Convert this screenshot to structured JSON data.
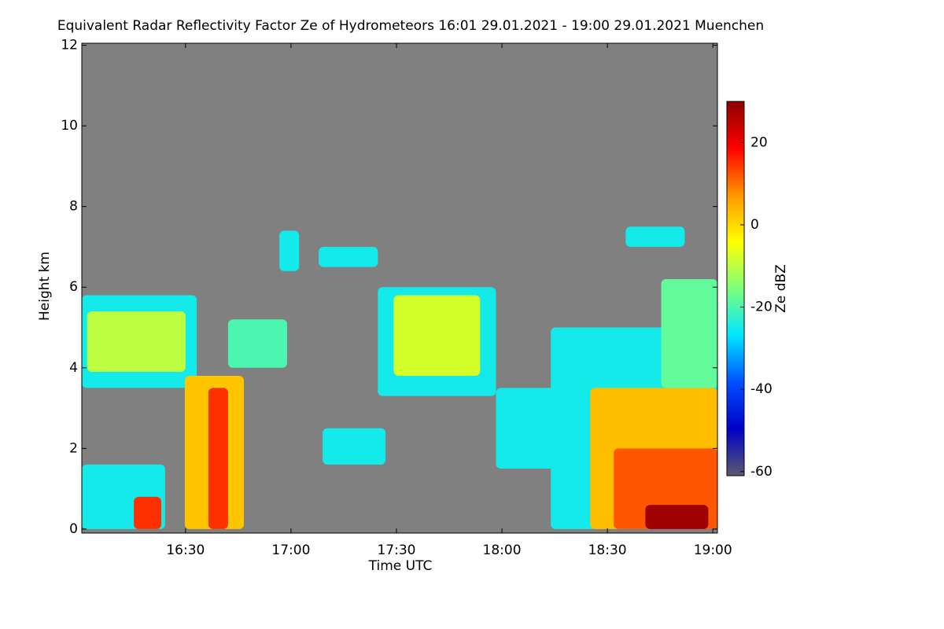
{
  "chart_data": {
    "type": "heatmap",
    "title": "Equivalent Radar Reflectivity Factor Ze of Hydrometeors   16:01 29.01.2021 - 19:00 29.01.2021 Muenchen",
    "xlabel": "Time UTC",
    "ylabel": "Height km",
    "colorbar_label": "Ze dBZ",
    "background": "#808080",
    "xlim": [
      960.5,
      1141.3
    ],
    "xticks": [
      {
        "value": 990,
        "label": "16:30"
      },
      {
        "value": 1020,
        "label": "17:00"
      },
      {
        "value": 1050,
        "label": "17:30"
      },
      {
        "value": 1080,
        "label": "18:00"
      },
      {
        "value": 1110,
        "label": "18:30"
      },
      {
        "value": 1140,
        "label": "19:00"
      }
    ],
    "ylim": [
      -0.1,
      12.05
    ],
    "yticks": [
      0,
      2,
      4,
      6,
      8,
      10,
      12
    ],
    "zlim": [
      -61,
      30
    ],
    "zticks": [
      20,
      0,
      -20,
      -40,
      -60
    ],
    "colormap": [
      "#5a5a6e",
      "#0000c8",
      "#0050ff",
      "#00e6ff",
      "#7dff7d",
      "#ffff00",
      "#ff9600",
      "#ff0000",
      "#8b0000"
    ],
    "cells": [
      {
        "x": [
          960.5,
          993.2
        ],
        "y": [
          3.5,
          5.8
        ],
        "z": -25
      },
      {
        "x": [
          962.0,
          990.0
        ],
        "y": [
          3.9,
          5.4
        ],
        "z": -10
      },
      {
        "x": [
          960.5,
          984.2
        ],
        "y": [
          0,
          1.6
        ],
        "z": -25
      },
      {
        "x": [
          975.3,
          983.1
        ],
        "y": [
          0,
          0.8
        ],
        "z": 15
      },
      {
        "x": [
          989.8,
          1006.6
        ],
        "y": [
          0,
          3.8
        ],
        "z": 2
      },
      {
        "x": [
          996.5,
          1002.1
        ],
        "y": [
          0,
          3.5
        ],
        "z": 15
      },
      {
        "x": [
          1002.1,
          1018.9
        ],
        "y": [
          4.0,
          5.2
        ],
        "z": -20
      },
      {
        "x": [
          1044.7,
          1078.3
        ],
        "y": [
          3.3,
          6.0
        ],
        "z": -25
      },
      {
        "x": [
          1049.2,
          1073.8
        ],
        "y": [
          3.8,
          5.8
        ],
        "z": -8
      },
      {
        "x": [
          1029.0,
          1046.9
        ],
        "y": [
          1.6,
          2.5
        ],
        "z": -25
      },
      {
        "x": [
          1027.9,
          1044.7
        ],
        "y": [
          6.5,
          7.0
        ],
        "z": -25
      },
      {
        "x": [
          1016.7,
          1022.3
        ],
        "y": [
          6.4,
          7.4
        ],
        "z": -25
      },
      {
        "x": [
          1078.3,
          1107.4
        ],
        "y": [
          1.5,
          3.5
        ],
        "z": -25
      },
      {
        "x": [
          1093.9,
          1141.3
        ],
        "y": [
          0,
          5.0
        ],
        "z": -25
      },
      {
        "x": [
          1105.1,
          1141.3
        ],
        "y": [
          0,
          3.5
        ],
        "z": 3
      },
      {
        "x": [
          1111.8,
          1141.3
        ],
        "y": [
          0,
          2.0
        ],
        "z": 12
      },
      {
        "x": [
          1120.8,
          1138.7
        ],
        "y": [
          0,
          0.6
        ],
        "z": 28
      },
      {
        "x": [
          1125.3,
          1141.3
        ],
        "y": [
          3.5,
          6.2
        ],
        "z": -18
      },
      {
        "x": [
          1115.2,
          1132.0
        ],
        "y": [
          7.0,
          7.5
        ],
        "z": -25
      }
    ]
  }
}
